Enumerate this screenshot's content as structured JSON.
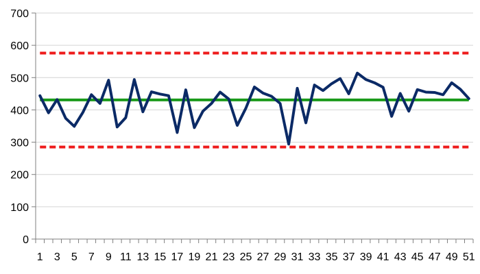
{
  "chart_data": {
    "type": "line",
    "title": "",
    "xlabel": "",
    "ylabel": "",
    "ylim": [
      0,
      700
    ],
    "yticks": [
      "0",
      "100",
      "200",
      "300",
      "400",
      "500",
      "600",
      "700"
    ],
    "x_tick_labels": [
      "1",
      "3",
      "5",
      "7",
      "9",
      "11",
      "13",
      "15",
      "17",
      "19",
      "21",
      "23",
      "25",
      "27",
      "29",
      "31",
      "33",
      "35",
      "37",
      "39",
      "41",
      "43",
      "45",
      "47",
      "49",
      "51"
    ],
    "grid": "horizontal",
    "legend": "none",
    "x": [
      1,
      2,
      3,
      4,
      5,
      6,
      7,
      8,
      9,
      10,
      11,
      12,
      13,
      14,
      15,
      16,
      17,
      18,
      19,
      20,
      21,
      22,
      23,
      24,
      25,
      26,
      27,
      28,
      29,
      30,
      31,
      32,
      33,
      34,
      35,
      36,
      37,
      38,
      39,
      40,
      41,
      42,
      43,
      44,
      45,
      46,
      47,
      48,
      49,
      50,
      51
    ],
    "series": [
      {
        "color": "#0b2a66",
        "values": [
          444,
          391,
          432,
          374,
          349,
          392,
          447,
          420,
          492,
          347,
          376,
          494,
          394,
          456,
          449,
          444,
          330,
          462,
          345,
          396,
          420,
          455,
          434,
          352,
          405,
          471,
          452,
          442,
          420,
          294,
          467,
          360,
          477,
          460,
          481,
          497,
          450,
          514,
          494,
          484,
          470,
          380,
          451,
          396,
          463,
          455,
          454,
          447,
          484,
          464,
          435
        ]
      }
    ],
    "reference_lines": [
      {
        "kind": "center",
        "value": 431,
        "color": "#1a9a1a",
        "style": "solid"
      },
      {
        "kind": "upper_limit",
        "value": 576,
        "color": "#ee1c1c",
        "style": "dashed"
      },
      {
        "kind": "lower_limit",
        "value": 285,
        "color": "#ee1c1c",
        "style": "dashed"
      }
    ]
  }
}
